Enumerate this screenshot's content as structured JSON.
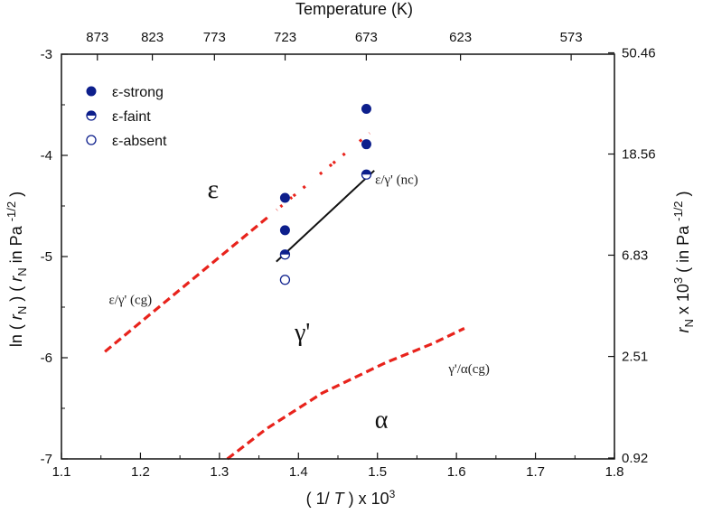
{
  "chart_data": {
    "type": "scatter",
    "title": "",
    "top_axis_title": "Temperature (K)",
    "xlabel": "( 1/ T ) x 10^3",
    "ylabel": "ln ( rN ) ( rN in Pa^-1/2 )",
    "right_ylabel": "rN x 10^3 ( in Pa^-1/2 )",
    "xlim": [
      1.1,
      1.8
    ],
    "ylim": [
      -7,
      -3
    ],
    "x_ticks": [
      1.1,
      1.2,
      1.3,
      1.4,
      1.5,
      1.6,
      1.7,
      1.8
    ],
    "x_tick_labels": [
      "1.1",
      "1.2",
      "1.3",
      "1.4",
      "1.5",
      "1.6",
      "1.7",
      "1.8"
    ],
    "y_ticks": [
      -3,
      -4,
      -5,
      -6,
      -7
    ],
    "y_tick_labels": [
      "-3",
      "-4",
      "-5",
      "-6",
      "-7"
    ],
    "top_ticks": [
      873,
      823,
      773,
      723,
      673,
      623,
      573
    ],
    "top_tick_labels": [
      "873",
      "823",
      "773",
      "723",
      "673",
      "623",
      "573"
    ],
    "right_ticks": [
      50.46,
      18.56,
      6.83,
      2.51,
      0.92
    ],
    "right_tick_labels": [
      "50.46",
      "18.56",
      "6.83",
      "2.51",
      "0.92"
    ],
    "legend": {
      "position": "top-left",
      "entries": [
        {
          "label": "ε-strong",
          "marker": "filled"
        },
        {
          "label": "ε-faint",
          "marker": "half"
        },
        {
          "label": "ε-absent",
          "marker": "open"
        }
      ]
    },
    "series": [
      {
        "name": "ε-strong",
        "marker": "filled",
        "points": [
          [
            1.383,
            -4.42
          ],
          [
            1.383,
            -4.74
          ],
          [
            1.486,
            -3.54
          ],
          [
            1.486,
            -3.89
          ]
        ]
      },
      {
        "name": "ε-faint",
        "marker": "half",
        "points": [
          [
            1.383,
            -4.98
          ],
          [
            1.486,
            -4.19
          ]
        ]
      },
      {
        "name": "ε-absent",
        "marker": "open",
        "points": [
          [
            1.383,
            -5.23
          ]
        ]
      }
    ],
    "lines": [
      {
        "name": "ε/γ' (cg) boundary",
        "color": "#e8231c",
        "style": "dash",
        "points": [
          [
            1.155,
            -5.94
          ],
          [
            1.49,
            -3.78
          ]
        ]
      },
      {
        "name": "ε/γ' (nc) boundary",
        "color": "#111111",
        "style": "solid",
        "points": [
          [
            1.372,
            -5.05
          ],
          [
            1.496,
            -4.15
          ]
        ]
      },
      {
        "name": "γ'/α (cg) boundary",
        "color": "#e8231c",
        "style": "dash",
        "points": [
          [
            1.31,
            -7.0
          ],
          [
            1.36,
            -6.7
          ],
          [
            1.43,
            -6.35
          ],
          [
            1.51,
            -6.05
          ],
          [
            1.57,
            -5.86
          ],
          [
            1.61,
            -5.71
          ]
        ]
      }
    ],
    "annotations": [
      {
        "text": "ε/γ' (cg)",
        "x": 1.16,
        "y": -5.47
      },
      {
        "text": "ε/γ' (nc)",
        "x": 1.497,
        "y": -4.28
      },
      {
        "text": "γ'/α(cg)",
        "x": 1.59,
        "y": -6.15
      }
    ],
    "region_labels": [
      {
        "text": "ε",
        "x": 1.292,
        "y": -4.42
      },
      {
        "text": "γ'",
        "x": 1.405,
        "y": -5.83
      },
      {
        "text": "α",
        "x": 1.505,
        "y": -6.69
      }
    ]
  }
}
